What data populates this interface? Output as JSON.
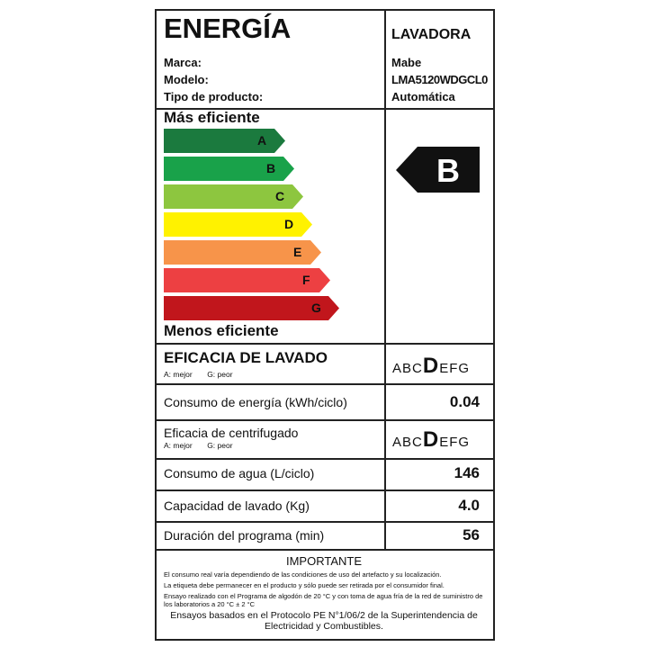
{
  "header": {
    "title": "ENERGÍA",
    "product": "LAVADORA"
  },
  "info": [
    {
      "label": "Marca:",
      "value": "Mabe"
    },
    {
      "label": "Modelo:",
      "value": "LMA5120WDGCL0"
    },
    {
      "label": "Tipo de producto:",
      "value": "Automática"
    }
  ],
  "scale": {
    "top": "Más eficiente",
    "bottom": "Menos eficiente",
    "classes": [
      {
        "letter": "A",
        "color": "#1b7a3e"
      },
      {
        "letter": "B",
        "color": "#19a24a"
      },
      {
        "letter": "C",
        "color": "#8dc63f"
      },
      {
        "letter": "D",
        "color": "#fff200"
      },
      {
        "letter": "E",
        "color": "#f7944a"
      },
      {
        "letter": "F",
        "color": "#ed4042"
      },
      {
        "letter": "G",
        "color": "#c1161c"
      }
    ],
    "rating": "B"
  },
  "wash": {
    "label": "EFICACIA DE LAVADO",
    "sub_a": "A: mejor",
    "sub_g": "G: peor",
    "pre": "ABC",
    "rating": "D",
    "post": "EFG"
  },
  "energy": {
    "label": "Consumo de energía (kWh/ciclo)",
    "value": "0.04"
  },
  "spin": {
    "label": "Eficacia de centrifugado",
    "sub_a": "A: mejor",
    "sub_g": "G: peor",
    "pre": "ABC",
    "rating": "D",
    "post": "EFG"
  },
  "water": {
    "label": "Consumo de agua (L/ciclo)",
    "value": "146"
  },
  "capacity": {
    "label": "Capacidad de lavado (Kg)",
    "value": "4.0"
  },
  "duration": {
    "label": "Duración del programa (min)",
    "value": "56"
  },
  "important": {
    "title": "IMPORTANTE",
    "lines": [
      "El consumo real varía dependiendo de las condiciones de uso del artefacto y su localización.",
      "La etiqueta debe permanecer en el producto y sólo puede ser retirada por el consumidor final.",
      "Ensayo realizado con el Programa de algodón de 20 °C y con toma de agua fría de la red de suministro de los laboratorios a 20 °C ± 2 °C"
    ],
    "footer": "Ensayos basados en el Protocolo PE N°1/06/2 de la Superintendencia de Electricidad y Combustibles."
  }
}
